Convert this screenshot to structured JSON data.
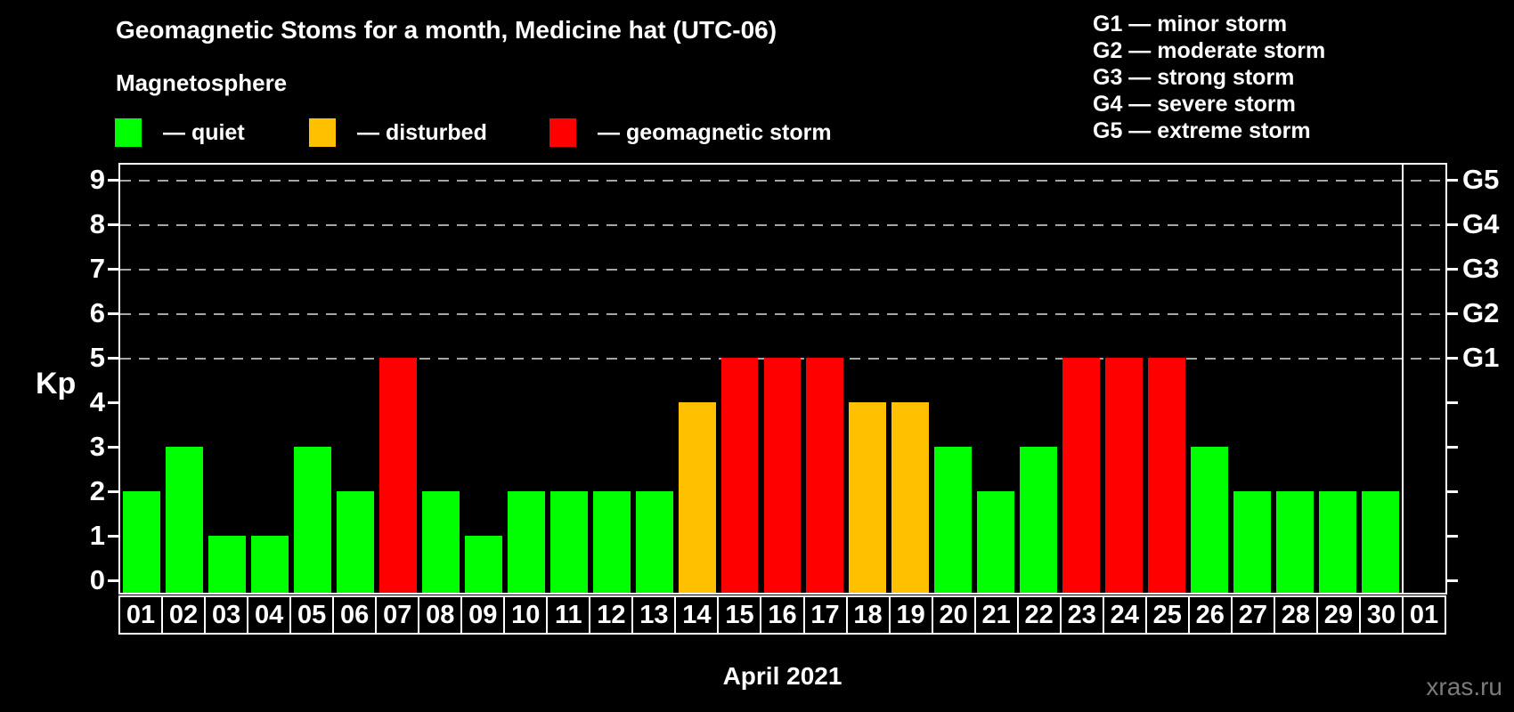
{
  "title": "Geomagnetic Stoms for a month, Medicine hat (UTC-06)",
  "legend": {
    "title": "Magnetosphere",
    "items": [
      {
        "key": "quiet",
        "label": "— quiet",
        "color": "#00ff00"
      },
      {
        "key": "disturbed",
        "label": "— disturbed",
        "color": "#ffc000"
      },
      {
        "key": "storm",
        "label": "— geomagnetic storm",
        "color": "#ff0000"
      }
    ]
  },
  "g_legend": {
    "lines": [
      "G1 — minor storm",
      "G2 — moderate storm",
      "G3 — strong storm",
      "G4 — severe storm",
      "G5 — extreme storm"
    ]
  },
  "chart_data": {
    "type": "bar",
    "title": "Geomagnetic Stoms for a month, Medicine hat (UTC-06)",
    "xlabel": "April 2021",
    "ylabel": "Kp",
    "ylim": [
      0,
      9.6
    ],
    "yticks": [
      0,
      1,
      2,
      3,
      4,
      5,
      6,
      7,
      8,
      9
    ],
    "grid": "horizontal dashed lines at Kp 5-9",
    "gridlines_at": [
      5,
      6,
      7,
      8,
      9
    ],
    "right_axis_labels": [
      {
        "kp": 5,
        "label": "G1"
      },
      {
        "kp": 6,
        "label": "G2"
      },
      {
        "kp": 7,
        "label": "G3"
      },
      {
        "kp": 8,
        "label": "G4"
      },
      {
        "kp": 9,
        "label": "G5"
      }
    ],
    "legend_position": "top",
    "categories": [
      "01",
      "02",
      "03",
      "04",
      "05",
      "06",
      "07",
      "08",
      "09",
      "10",
      "11",
      "12",
      "13",
      "14",
      "15",
      "16",
      "17",
      "18",
      "19",
      "20",
      "21",
      "22",
      "23",
      "24",
      "25",
      "26",
      "27",
      "28",
      "29",
      "30",
      "01"
    ],
    "values": [
      2,
      3,
      1,
      1,
      3,
      2,
      5,
      2,
      1,
      2,
      2,
      2,
      2,
      4,
      5,
      5,
      5,
      4,
      4,
      3,
      2,
      3,
      5,
      5,
      5,
      3,
      2,
      2,
      2,
      2,
      null
    ],
    "bars": [
      {
        "day": "01",
        "kp": 2,
        "status": "quiet"
      },
      {
        "day": "02",
        "kp": 3,
        "status": "quiet"
      },
      {
        "day": "03",
        "kp": 1,
        "status": "quiet"
      },
      {
        "day": "04",
        "kp": 1,
        "status": "quiet"
      },
      {
        "day": "05",
        "kp": 3,
        "status": "quiet"
      },
      {
        "day": "06",
        "kp": 2,
        "status": "quiet"
      },
      {
        "day": "07",
        "kp": 5,
        "status": "storm"
      },
      {
        "day": "08",
        "kp": 2,
        "status": "quiet"
      },
      {
        "day": "09",
        "kp": 1,
        "status": "quiet"
      },
      {
        "day": "10",
        "kp": 2,
        "status": "quiet"
      },
      {
        "day": "11",
        "kp": 2,
        "status": "quiet"
      },
      {
        "day": "12",
        "kp": 2,
        "status": "quiet"
      },
      {
        "day": "13",
        "kp": 2,
        "status": "quiet"
      },
      {
        "day": "14",
        "kp": 4,
        "status": "disturbed"
      },
      {
        "day": "15",
        "kp": 5,
        "status": "storm"
      },
      {
        "day": "16",
        "kp": 5,
        "status": "storm"
      },
      {
        "day": "17",
        "kp": 5,
        "status": "storm"
      },
      {
        "day": "18",
        "kp": 4,
        "status": "disturbed"
      },
      {
        "day": "19",
        "kp": 4,
        "status": "disturbed"
      },
      {
        "day": "20",
        "kp": 3,
        "status": "quiet"
      },
      {
        "day": "21",
        "kp": 2,
        "status": "quiet"
      },
      {
        "day": "22",
        "kp": 3,
        "status": "quiet"
      },
      {
        "day": "23",
        "kp": 5,
        "status": "storm"
      },
      {
        "day": "24",
        "kp": 5,
        "status": "storm"
      },
      {
        "day": "25",
        "kp": 5,
        "status": "storm"
      },
      {
        "day": "26",
        "kp": 3,
        "status": "quiet"
      },
      {
        "day": "27",
        "kp": 2,
        "status": "quiet"
      },
      {
        "day": "28",
        "kp": 2,
        "status": "quiet"
      },
      {
        "day": "29",
        "kp": 2,
        "status": "quiet"
      },
      {
        "day": "30",
        "kp": 2,
        "status": "quiet"
      },
      {
        "day": "01",
        "kp": null,
        "status": "none"
      }
    ],
    "colors_by_status": {
      "quiet": "#00ff00",
      "disturbed": "#ffc000",
      "storm": "#ff0000"
    }
  },
  "footer": {
    "xlabel": "April 2021",
    "watermark": "xras.ru"
  },
  "colors": {
    "background": "#000000",
    "text": "#ffffff",
    "axis": "#ffffff",
    "gridline": "#a6a6a6",
    "watermark": "#7b7b7b",
    "quiet": "#00ff00",
    "disturbed": "#ffc000",
    "storm": "#ff0000"
  }
}
